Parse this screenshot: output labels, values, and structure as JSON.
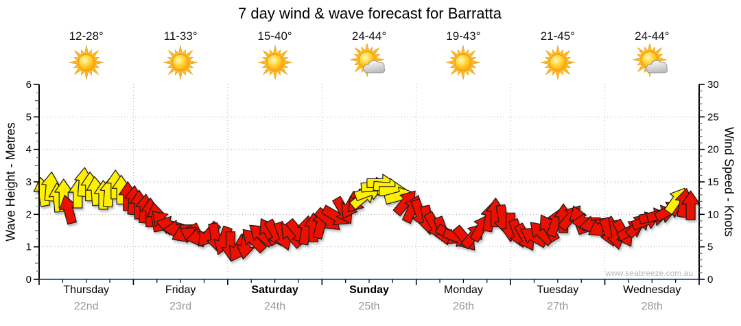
{
  "title": "7 day wind & wave forecast for Barratta",
  "watermark": "www.seabreeze.com.au",
  "chart_data": {
    "type": "wind-arrows",
    "title": "7 day wind & wave forecast for Barratta",
    "days": [
      {
        "name": "Thursday",
        "date": "22nd",
        "temp": "12-28°",
        "icon": "sun",
        "bold": false
      },
      {
        "name": "Friday",
        "date": "23rd",
        "temp": "11-33°",
        "icon": "sun",
        "bold": false
      },
      {
        "name": "Saturday",
        "date": "24th",
        "temp": "15-40°",
        "icon": "sun",
        "bold": true
      },
      {
        "name": "Sunday",
        "date": "25th",
        "temp": "24-44°",
        "icon": "sun-cloud",
        "bold": true
      },
      {
        "name": "Monday",
        "date": "26th",
        "temp": "19-43°",
        "icon": "sun",
        "bold": false
      },
      {
        "name": "Tuesday",
        "date": "27th",
        "temp": "21-45°",
        "icon": "sun",
        "bold": false
      },
      {
        "name": "Wednesday",
        "date": "28th",
        "temp": "24-44°",
        "icon": "sun-cloud",
        "bold": false
      }
    ],
    "left_axis": {
      "label": "Wave Height - Metres",
      "min": 0,
      "max": 6,
      "major_step": 1,
      "minor_step": 0.25,
      "gridlines": [
        1,
        2,
        3,
        4,
        5
      ]
    },
    "right_axis": {
      "label": "Wind Speed - Knots",
      "min": 0,
      "max": 30,
      "major_step": 5,
      "minor_step": 1
    },
    "x_axis": {
      "minor_ticks_per_day": 4,
      "day_boundary_gridlines": true
    },
    "colors": {
      "arrow_yellow": "#ffef00",
      "arrow_red": "#eb1000",
      "arrow_outline": "#1a1a1a",
      "axis_line": "#000000",
      "baseline": "#3a6298",
      "grid": "#aaaaaa",
      "day_text": "#000000",
      "date_text": "#999999",
      "watermark_text": "#b9b9b9"
    },
    "arrows_format": [
      "t_days",
      "knots",
      "direction_deg",
      "color"
    ],
    "arrows": [
      [
        0.04,
        13.5,
        -10,
        "y"
      ],
      [
        0.12,
        14.3,
        5,
        "y"
      ],
      [
        0.2,
        12.6,
        -5,
        "y"
      ],
      [
        0.26,
        13.2,
        0,
        "y"
      ],
      [
        0.31,
        10.8,
        -15,
        "r"
      ],
      [
        0.41,
        13.2,
        0,
        "y"
      ],
      [
        0.47,
        15.0,
        5,
        "y"
      ],
      [
        0.54,
        14.3,
        0,
        "y"
      ],
      [
        0.6,
        13.6,
        -5,
        "y"
      ],
      [
        0.68,
        13.0,
        0,
        "y"
      ],
      [
        0.74,
        13.4,
        5,
        "y"
      ],
      [
        0.81,
        14.6,
        0,
        "y"
      ],
      [
        0.87,
        13.8,
        0,
        "y"
      ],
      [
        0.94,
        12.8,
        0,
        "r"
      ],
      [
        1.0,
        12.2,
        5,
        "r"
      ],
      [
        1.06,
        11.5,
        0,
        "r"
      ],
      [
        1.12,
        10.9,
        5,
        "r"
      ],
      [
        1.18,
        10.3,
        0,
        "r"
      ],
      [
        1.24,
        9.6,
        -10,
        "r"
      ],
      [
        1.31,
        8.9,
        -45,
        "r"
      ],
      [
        1.39,
        8.3,
        -75,
        "r"
      ],
      [
        1.47,
        7.7,
        -90,
        "r"
      ],
      [
        1.55,
        7.1,
        -115,
        "r"
      ],
      [
        1.63,
        6.7,
        -60,
        "r"
      ],
      [
        1.71,
        6.5,
        -100,
        "r"
      ],
      [
        1.79,
        6.8,
        -140,
        "r"
      ],
      [
        1.87,
        6.4,
        170,
        "r"
      ],
      [
        1.95,
        5.9,
        -160,
        "r"
      ],
      [
        2.03,
        5.1,
        180,
        "r"
      ],
      [
        2.11,
        4.7,
        -150,
        "r"
      ],
      [
        2.19,
        5.3,
        -170,
        "r"
      ],
      [
        2.27,
        6.1,
        -45,
        "r"
      ],
      [
        2.35,
        6.9,
        -50,
        "r"
      ],
      [
        2.43,
        7.4,
        -30,
        "r"
      ],
      [
        2.51,
        7.0,
        150,
        "r"
      ],
      [
        2.59,
        6.6,
        160,
        "r"
      ],
      [
        2.67,
        6.9,
        -40,
        "r"
      ],
      [
        2.75,
        7.2,
        140,
        "r"
      ],
      [
        2.83,
        7.6,
        10,
        "r"
      ],
      [
        2.91,
        8.0,
        0,
        "r"
      ],
      [
        2.99,
        8.5,
        15,
        "r"
      ],
      [
        3.07,
        9.1,
        130,
        "r"
      ],
      [
        3.15,
        9.7,
        120,
        "r"
      ],
      [
        3.23,
        10.5,
        150,
        "r"
      ],
      [
        3.3,
        11.3,
        -150,
        "r"
      ],
      [
        3.38,
        12.1,
        -140,
        "r"
      ],
      [
        3.44,
        12.7,
        50,
        "y"
      ],
      [
        3.5,
        13.5,
        70,
        "y"
      ],
      [
        3.57,
        14.3,
        85,
        "y"
      ],
      [
        3.63,
        14.8,
        90,
        "y"
      ],
      [
        3.7,
        14.2,
        95,
        "y"
      ],
      [
        3.76,
        13.6,
        90,
        "y"
      ],
      [
        3.82,
        12.8,
        75,
        "y"
      ],
      [
        3.89,
        11.9,
        40,
        "r"
      ],
      [
        3.96,
        10.9,
        25,
        "r"
      ],
      [
        4.04,
        10.1,
        160,
        "r"
      ],
      [
        4.12,
        9.1,
        170,
        "r"
      ],
      [
        4.2,
        8.2,
        150,
        "r"
      ],
      [
        4.28,
        7.4,
        160,
        "r"
      ],
      [
        4.36,
        6.8,
        120,
        "r"
      ],
      [
        4.44,
        6.4,
        110,
        "r"
      ],
      [
        4.52,
        6.2,
        140,
        "r"
      ],
      [
        4.61,
        6.8,
        40,
        "r"
      ],
      [
        4.69,
        8.0,
        30,
        "r"
      ],
      [
        4.78,
        9.6,
        10,
        "r"
      ],
      [
        4.84,
        10.3,
        0,
        "r"
      ],
      [
        4.92,
        9.2,
        170,
        "r"
      ],
      [
        5.0,
        8.0,
        180,
        "r"
      ],
      [
        5.08,
        7.0,
        160,
        "r"
      ],
      [
        5.16,
        6.4,
        150,
        "r"
      ],
      [
        5.24,
        6.6,
        -60,
        "r"
      ],
      [
        5.32,
        7.2,
        -45,
        "r"
      ],
      [
        5.4,
        8.0,
        -30,
        "r"
      ],
      [
        5.48,
        8.8,
        20,
        "r"
      ],
      [
        5.56,
        9.4,
        0,
        "r"
      ],
      [
        5.64,
        9.6,
        40,
        "r"
      ],
      [
        5.72,
        9.2,
        -20,
        "r"
      ],
      [
        5.8,
        8.8,
        -90,
        "r"
      ],
      [
        5.88,
        8.4,
        -100,
        "r"
      ],
      [
        5.96,
        8.0,
        -120,
        "r"
      ],
      [
        6.04,
        7.2,
        160,
        "r"
      ],
      [
        6.12,
        6.8,
        170,
        "r"
      ],
      [
        6.2,
        7.0,
        150,
        "r"
      ],
      [
        6.28,
        7.6,
        60,
        "r"
      ],
      [
        6.36,
        8.4,
        45,
        "r"
      ],
      [
        6.44,
        9.0,
        70,
        "r"
      ],
      [
        6.52,
        9.6,
        80,
        "r"
      ],
      [
        6.6,
        10.0,
        75,
        "r"
      ],
      [
        6.68,
        10.6,
        60,
        "r"
      ],
      [
        6.76,
        12.2,
        35,
        "y"
      ],
      [
        6.84,
        11.8,
        10,
        "r"
      ],
      [
        6.91,
        11.4,
        0,
        "r"
      ]
    ]
  }
}
